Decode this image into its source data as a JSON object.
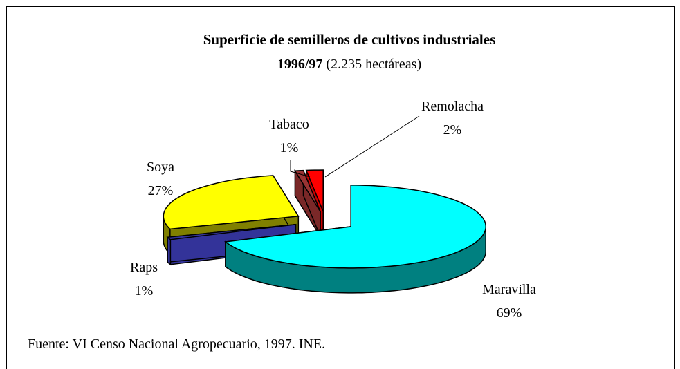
{
  "chart_data": {
    "type": "pie3d",
    "title": "Superficie de semilleros de cultivos industriales",
    "subtitle_bold": "1996/97",
    "subtitle": "(2.235 hectáreas)",
    "categories": [
      "Maravilla",
      "Raps",
      "Soya",
      "Tabaco",
      "Remolacha"
    ],
    "values": [
      69,
      1,
      27,
      1,
      2
    ],
    "value_labels": [
      "69%",
      "1%",
      "27%",
      "1%",
      "2%"
    ],
    "colors": [
      "#00ffff",
      "#333399",
      "#ffff00",
      "#993333",
      "#ff0000"
    ],
    "side_colors": [
      "#008080",
      "#333399",
      "#808000",
      "#7a2828",
      "#cc0000"
    ],
    "source": "Fuente: VI Censo Nacional Agropecuario, 1997. INE."
  }
}
